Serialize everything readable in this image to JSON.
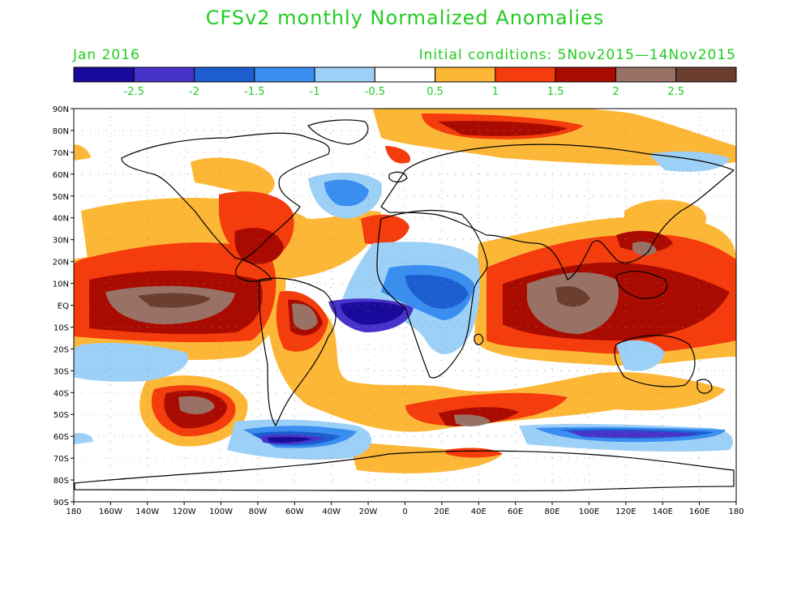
{
  "header": {
    "title": "CFSv2 monthly Normalized Anomalies",
    "valid_month": "Jan 2016",
    "initial_conditions": "Initial conditions: 5Nov2015—14Nov2015"
  },
  "colorbar": {
    "colors": [
      "#1a0a9c",
      "#4733c9",
      "#1c5ed0",
      "#3a8ef0",
      "#9cd0f7",
      "#ffffff",
      "#fdb737",
      "#f43c0c",
      "#a90b00",
      "#9a7165",
      "#6b3f30"
    ],
    "labels": [
      "-2.5",
      "-2",
      "-1.5",
      "-1",
      "-0.5",
      "0.5",
      "1",
      "1.5",
      "2",
      "2.5"
    ]
  },
  "map": {
    "lat_labels": [
      "90N",
      "80N",
      "70N",
      "60N",
      "50N",
      "40N",
      "30N",
      "20N",
      "10N",
      "EQ",
      "10S",
      "20S",
      "30S",
      "40S",
      "50S",
      "60S",
      "70S",
      "80S",
      "90S"
    ],
    "lon_labels": [
      "180",
      "160W",
      "140W",
      "120W",
      "100W",
      "80W",
      "60W",
      "40W",
      "20W",
      "0",
      "20E",
      "40E",
      "60E",
      "80E",
      "100E",
      "120E",
      "140E",
      "160E",
      "180"
    ],
    "levels": {
      "white": "#ffffff",
      "warm1": "#fdb737",
      "warm2": "#f43c0c",
      "warm3": "#a90b00",
      "warm4": "#9a7165",
      "warm5": "#6b3f30",
      "cool1": "#9cd0f7",
      "cool2": "#3a8ef0",
      "cool3": "#1c5ed0",
      "cool4": "#4733c9",
      "cool5": "#1a0a9c"
    }
  }
}
